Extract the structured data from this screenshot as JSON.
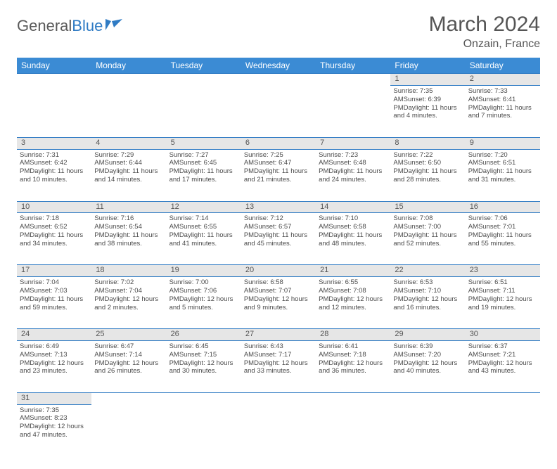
{
  "brand": {
    "part1": "General",
    "part2": "Blue"
  },
  "title": "March 2024",
  "location": "Onzain, France",
  "colors": {
    "header_bg": "#3b8bd4",
    "border": "#2f7bc4",
    "daynum_bg": "#e6e6e6",
    "text": "#4a4a4a"
  },
  "dayNames": [
    "Sunday",
    "Monday",
    "Tuesday",
    "Wednesday",
    "Thursday",
    "Friday",
    "Saturday"
  ],
  "weeks": [
    [
      null,
      null,
      null,
      null,
      null,
      {
        "n": "1",
        "sr": "7:35 AM",
        "ss": "6:39 PM",
        "dl": "11 hours and 4 minutes."
      },
      {
        "n": "2",
        "sr": "7:33 AM",
        "ss": "6:41 PM",
        "dl": "11 hours and 7 minutes."
      }
    ],
    [
      {
        "n": "3",
        "sr": "7:31 AM",
        "ss": "6:42 PM",
        "dl": "11 hours and 10 minutes."
      },
      {
        "n": "4",
        "sr": "7:29 AM",
        "ss": "6:44 PM",
        "dl": "11 hours and 14 minutes."
      },
      {
        "n": "5",
        "sr": "7:27 AM",
        "ss": "6:45 PM",
        "dl": "11 hours and 17 minutes."
      },
      {
        "n": "6",
        "sr": "7:25 AM",
        "ss": "6:47 PM",
        "dl": "11 hours and 21 minutes."
      },
      {
        "n": "7",
        "sr": "7:23 AM",
        "ss": "6:48 PM",
        "dl": "11 hours and 24 minutes."
      },
      {
        "n": "8",
        "sr": "7:22 AM",
        "ss": "6:50 PM",
        "dl": "11 hours and 28 minutes."
      },
      {
        "n": "9",
        "sr": "7:20 AM",
        "ss": "6:51 PM",
        "dl": "11 hours and 31 minutes."
      }
    ],
    [
      {
        "n": "10",
        "sr": "7:18 AM",
        "ss": "6:52 PM",
        "dl": "11 hours and 34 minutes."
      },
      {
        "n": "11",
        "sr": "7:16 AM",
        "ss": "6:54 PM",
        "dl": "11 hours and 38 minutes."
      },
      {
        "n": "12",
        "sr": "7:14 AM",
        "ss": "6:55 PM",
        "dl": "11 hours and 41 minutes."
      },
      {
        "n": "13",
        "sr": "7:12 AM",
        "ss": "6:57 PM",
        "dl": "11 hours and 45 minutes."
      },
      {
        "n": "14",
        "sr": "7:10 AM",
        "ss": "6:58 PM",
        "dl": "11 hours and 48 minutes."
      },
      {
        "n": "15",
        "sr": "7:08 AM",
        "ss": "7:00 PM",
        "dl": "11 hours and 52 minutes."
      },
      {
        "n": "16",
        "sr": "7:06 AM",
        "ss": "7:01 PM",
        "dl": "11 hours and 55 minutes."
      }
    ],
    [
      {
        "n": "17",
        "sr": "7:04 AM",
        "ss": "7:03 PM",
        "dl": "11 hours and 59 minutes."
      },
      {
        "n": "18",
        "sr": "7:02 AM",
        "ss": "7:04 PM",
        "dl": "12 hours and 2 minutes."
      },
      {
        "n": "19",
        "sr": "7:00 AM",
        "ss": "7:06 PM",
        "dl": "12 hours and 5 minutes."
      },
      {
        "n": "20",
        "sr": "6:58 AM",
        "ss": "7:07 PM",
        "dl": "12 hours and 9 minutes."
      },
      {
        "n": "21",
        "sr": "6:55 AM",
        "ss": "7:08 PM",
        "dl": "12 hours and 12 minutes."
      },
      {
        "n": "22",
        "sr": "6:53 AM",
        "ss": "7:10 PM",
        "dl": "12 hours and 16 minutes."
      },
      {
        "n": "23",
        "sr": "6:51 AM",
        "ss": "7:11 PM",
        "dl": "12 hours and 19 minutes."
      }
    ],
    [
      {
        "n": "24",
        "sr": "6:49 AM",
        "ss": "7:13 PM",
        "dl": "12 hours and 23 minutes."
      },
      {
        "n": "25",
        "sr": "6:47 AM",
        "ss": "7:14 PM",
        "dl": "12 hours and 26 minutes."
      },
      {
        "n": "26",
        "sr": "6:45 AM",
        "ss": "7:15 PM",
        "dl": "12 hours and 30 minutes."
      },
      {
        "n": "27",
        "sr": "6:43 AM",
        "ss": "7:17 PM",
        "dl": "12 hours and 33 minutes."
      },
      {
        "n": "28",
        "sr": "6:41 AM",
        "ss": "7:18 PM",
        "dl": "12 hours and 36 minutes."
      },
      {
        "n": "29",
        "sr": "6:39 AM",
        "ss": "7:20 PM",
        "dl": "12 hours and 40 minutes."
      },
      {
        "n": "30",
        "sr": "6:37 AM",
        "ss": "7:21 PM",
        "dl": "12 hours and 43 minutes."
      }
    ],
    [
      {
        "n": "31",
        "sr": "7:35 AM",
        "ss": "8:23 PM",
        "dl": "12 hours and 47 minutes."
      },
      null,
      null,
      null,
      null,
      null,
      null
    ]
  ],
  "labels": {
    "sunrise": "Sunrise:",
    "sunset": "Sunset:",
    "daylight": "Daylight:"
  }
}
